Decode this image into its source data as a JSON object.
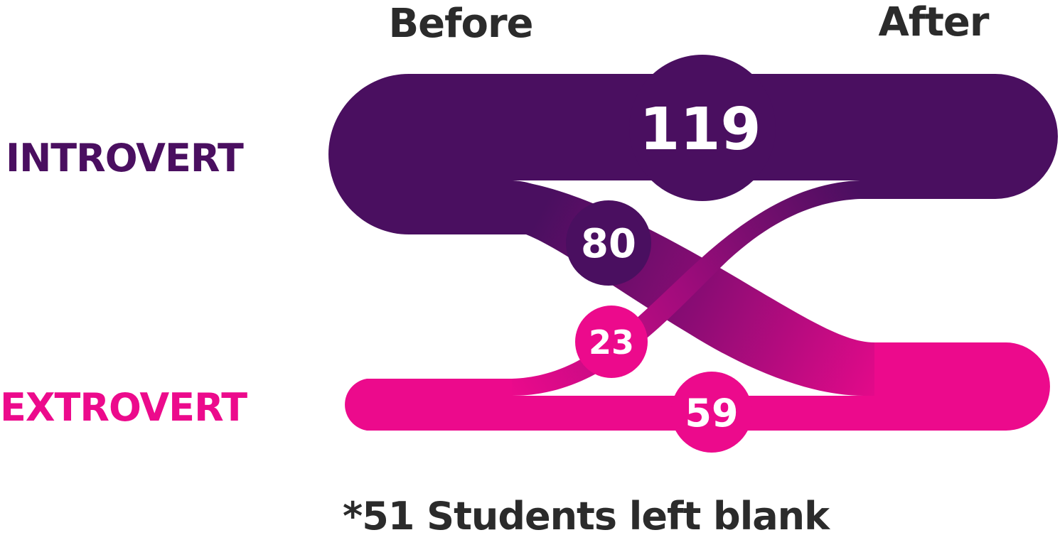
{
  "chart_data": {
    "type": "sankey",
    "columns": [
      "Before",
      "After"
    ],
    "categories": [
      "INTROVERT",
      "EXTROVERT"
    ],
    "colors": {
      "INTROVERT": "#4a0f60",
      "EXTROVERT": "#ec0a8c"
    },
    "flows": [
      {
        "from": "INTROVERT",
        "to": "INTROVERT",
        "value": 119
      },
      {
        "from": "INTROVERT",
        "to": "EXTROVERT",
        "value": 80
      },
      {
        "from": "EXTROVERT",
        "to": "INTROVERT",
        "value": 23
      },
      {
        "from": "EXTROVERT",
        "to": "EXTROVERT",
        "value": 59
      }
    ],
    "note": "*51 Students left blank"
  }
}
